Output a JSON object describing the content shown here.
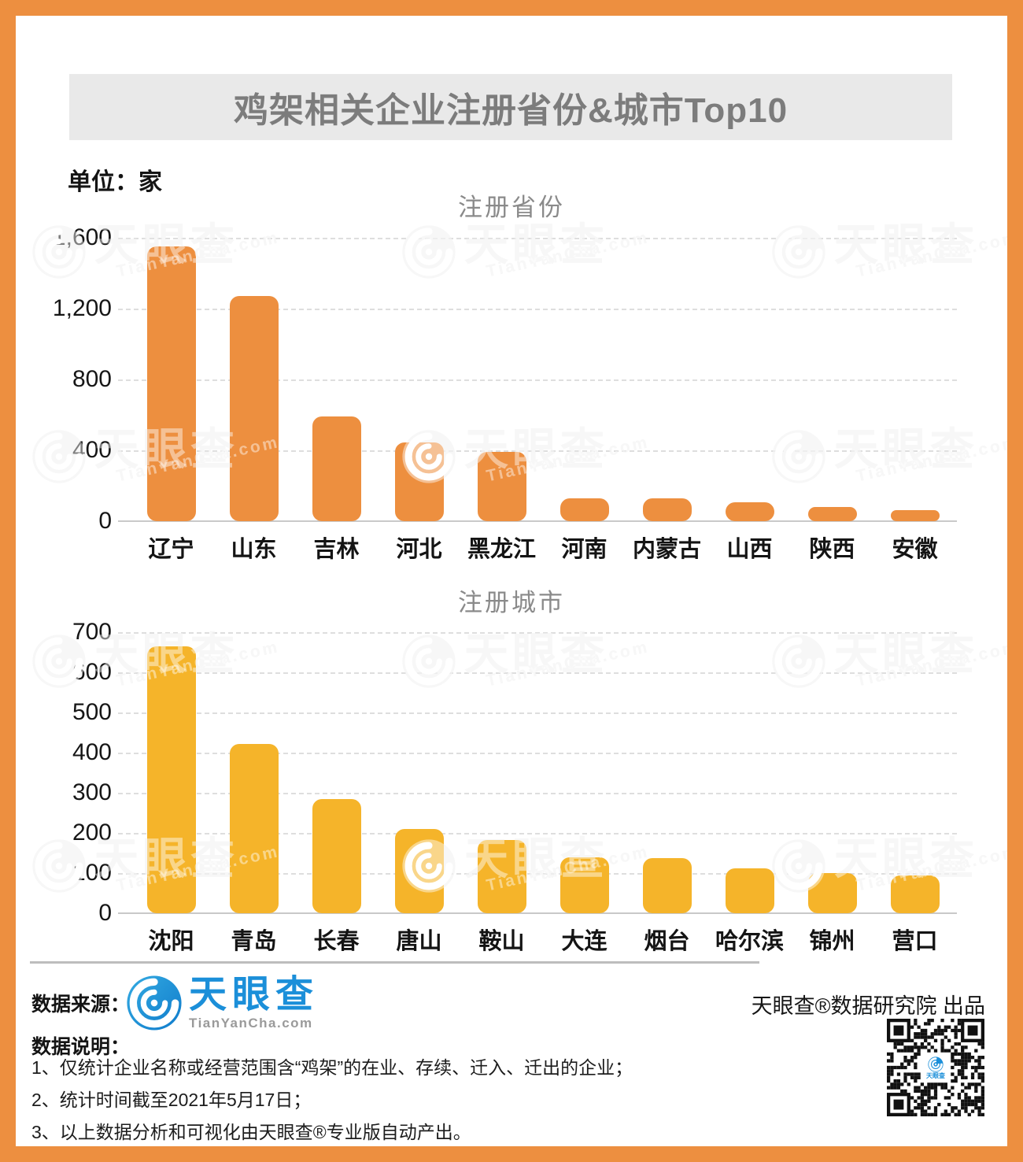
{
  "colors": {
    "frame_orange": "#ED8F40",
    "province_bar": "#ED8F3F",
    "city_bar": "#F5B42A",
    "title_bg": "#E9E9E9",
    "title_text": "#7C7C7C",
    "logo_blue": "#1B8FD9"
  },
  "title": "鸡架相关企业注册省份&城市Top10",
  "unit_label": "单位：家",
  "watermark": {
    "brand": "天眼查",
    "domain": "TianYanCha.com"
  },
  "chart_data": [
    {
      "type": "bar",
      "title": "注册省份",
      "categories": [
        "辽宁",
        "山东",
        "吉林",
        "河北",
        "黑龙江",
        "河南",
        "内蒙古",
        "山西",
        "陕西",
        "安徽"
      ],
      "values": [
        1550,
        1270,
        590,
        445,
        390,
        130,
        128,
        105,
        78,
        62
      ],
      "unit": "家",
      "bar_color": "#ED8F3F",
      "ylim": [
        0,
        1600
      ],
      "ytick_labels": [
        "1,600",
        "1,200",
        "800",
        "400",
        "0"
      ],
      "grid": true,
      "legend": "none"
    },
    {
      "type": "bar",
      "title": "注册城市",
      "categories": [
        "沈阳",
        "青岛",
        "长春",
        "唐山",
        "鞍山",
        "大连",
        "烟台",
        "哈尔滨",
        "锦州",
        "营口"
      ],
      "values": [
        665,
        422,
        285,
        210,
        183,
        140,
        138,
        112,
        100,
        95
      ],
      "unit": "家",
      "bar_color": "#F5B42A",
      "ylim": [
        0,
        700
      ],
      "ytick_labels": [
        "700",
        "600",
        "500",
        "400",
        "300",
        "200",
        "100",
        "0"
      ],
      "grid": true,
      "legend": "none"
    }
  ],
  "footer": {
    "source_label": "数据来源：",
    "logo": {
      "brand": "天眼查",
      "domain": "TianYanCha.com"
    },
    "producer": "天眼查®数据研究院 出品",
    "notes_label": "数据说明：",
    "notes": [
      "1、仅统计企业名称或经营范围含“鸡架”的在业、存续、迁入、迁出的企业；",
      "2、统计时间截至2021年5月17日；",
      "3、以上数据分析和可视化由天眼查®专业版自动产出。"
    ]
  }
}
